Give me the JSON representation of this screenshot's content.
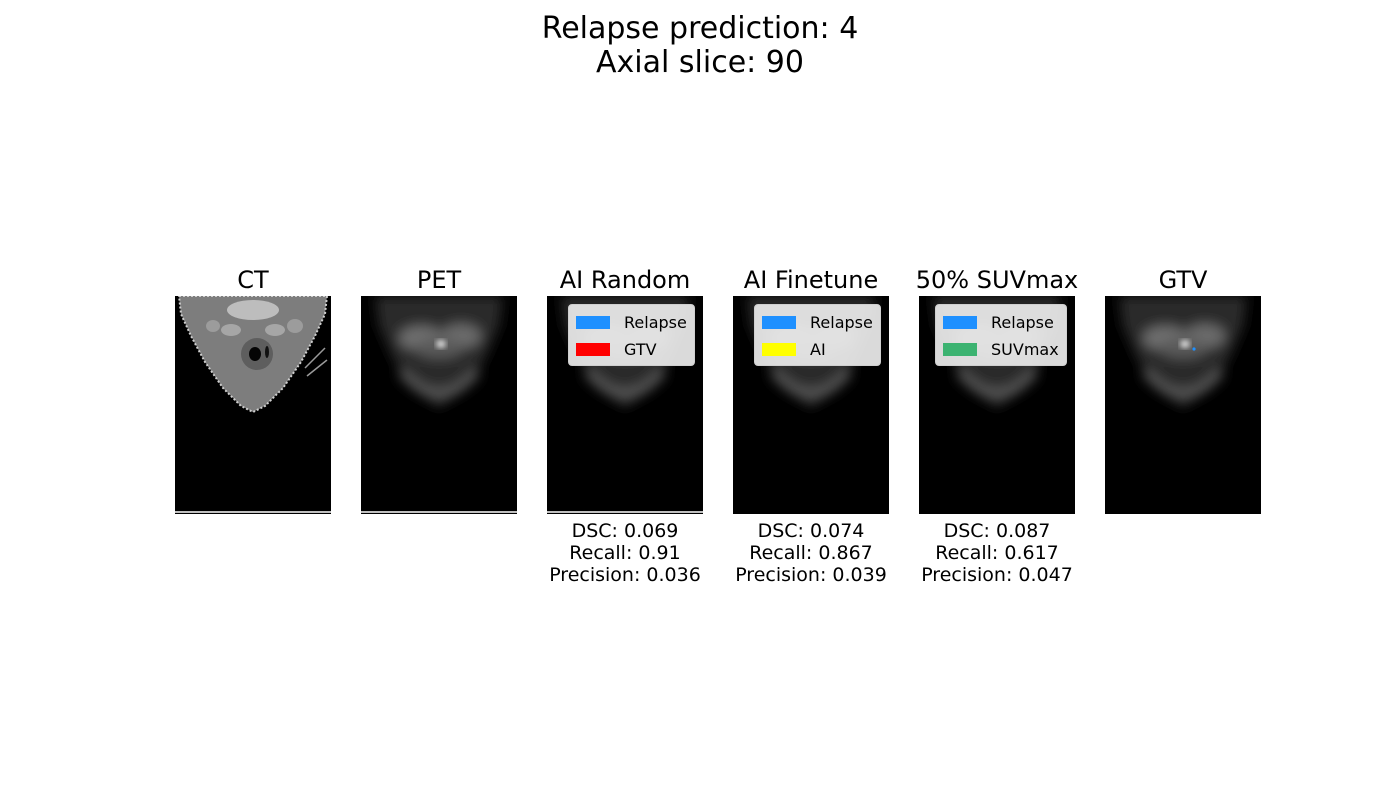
{
  "title": {
    "line1": "Relapse prediction: 4",
    "line2": "Axial slice: 90"
  },
  "panels": [
    {
      "title": "CT"
    },
    {
      "title": "PET"
    },
    {
      "title": "AI Random",
      "legend": [
        {
          "label": "Relapse",
          "color": "#1e90ff"
        },
        {
          "label": "GTV",
          "color": "#ff0000"
        }
      ],
      "metrics": {
        "dsc": "DSC: 0.069",
        "recall": "Recall: 0.91",
        "precision": "Precision: 0.036"
      }
    },
    {
      "title": "AI Finetune",
      "legend": [
        {
          "label": "Relapse",
          "color": "#1e90ff"
        },
        {
          "label": "AI",
          "color": "#ffff00"
        }
      ],
      "metrics": {
        "dsc": "DSC: 0.074",
        "recall": "Recall: 0.867",
        "precision": "Precision: 0.039"
      }
    },
    {
      "title": "50% SUVmax",
      "legend": [
        {
          "label": "Relapse",
          "color": "#1e90ff"
        },
        {
          "label": "SUVmax",
          "color": "#3cb371"
        }
      ],
      "metrics": {
        "dsc": "DSC: 0.087",
        "recall": "Recall: 0.617",
        "precision": "Precision: 0.047"
      }
    },
    {
      "title": "GTV"
    }
  ]
}
